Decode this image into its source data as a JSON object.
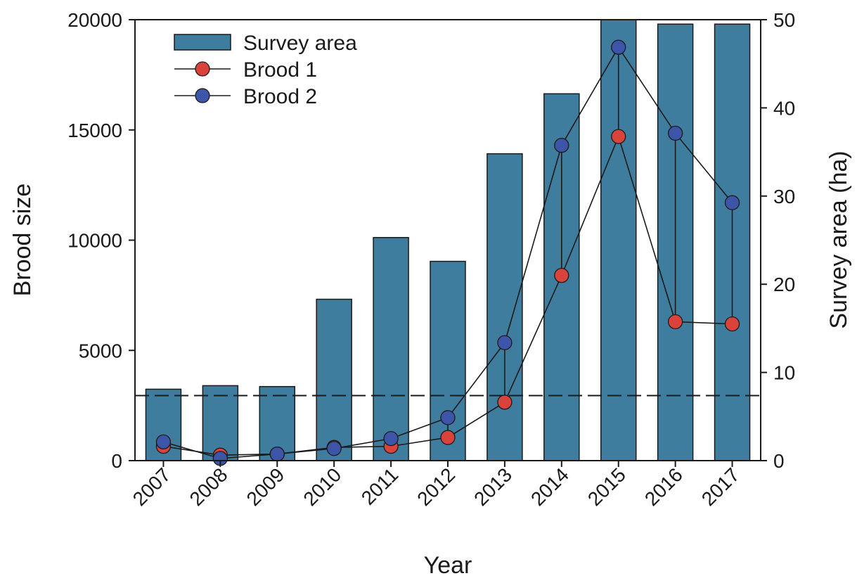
{
  "chart_data": {
    "type": "bar",
    "categories": [
      "2007",
      "2008",
      "2009",
      "2010",
      "2011",
      "2012",
      "2013",
      "2014",
      "2015",
      "2016",
      "2017"
    ],
    "xlabel": "Year",
    "ylabel_left": "Brood size",
    "ylabel_right": "Survey area (ha)",
    "ylim_left": [
      0,
      20000
    ],
    "ylim_right": [
      0,
      50
    ],
    "yticks_left": [
      "0",
      "5000",
      "10000",
      "15000",
      "20000"
    ],
    "yticks_right": [
      "0",
      "10",
      "20",
      "30",
      "40",
      "50"
    ],
    "series": [
      {
        "name": "Survey area",
        "kind": "bar",
        "axis": "right",
        "color": "#3f7d9e",
        "values": [
          8.1,
          8.5,
          8.4,
          18.3,
          25.3,
          22.6,
          34.8,
          41.6,
          50.0,
          49.5,
          49.5
        ]
      },
      {
        "name": "Brood 1",
        "kind": "line",
        "axis": "left",
        "color": "#d9433b",
        "values": [
          650,
          250,
          300,
          600,
          650,
          1050,
          2650,
          8400,
          14700,
          6300,
          6200
        ]
      },
      {
        "name": "Brood 2",
        "kind": "line",
        "axis": "left",
        "color": "#3d55a8",
        "values": [
          850,
          100,
          300,
          550,
          1000,
          1950,
          5350,
          14300,
          18750,
          14850,
          11700
        ]
      }
    ],
    "reference_line": {
      "axis": "left",
      "value": 2950,
      "style": "dashed"
    },
    "legend_position": "top-left",
    "grid": false
  }
}
